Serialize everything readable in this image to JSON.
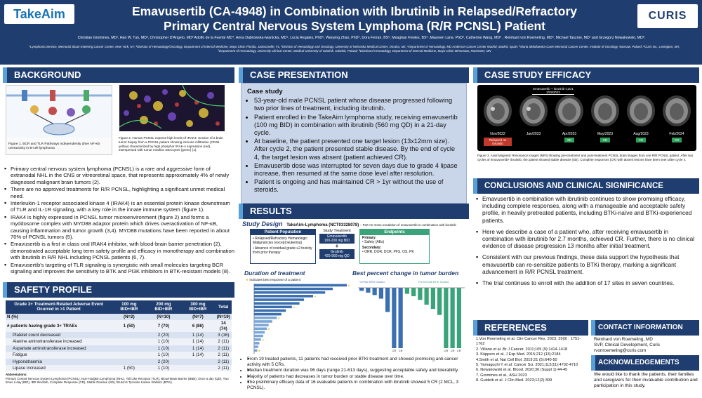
{
  "header": {
    "logo_left": "TakeAim",
    "logo_right": "CURIS",
    "title_line1": "Emavusertib (CA-4948) in Combination with Ibrutinib in Relapsed/Refractory",
    "title_line2": "Primary Central Nervous System Lymphoma (R/R PCNSL) Patient",
    "authors": "Christian Grommes, MD¹, Han W. Tun, MD², Christopher D'Angelo, MD³ Adolfo de la Fuente MD⁴, Anna Dabrowska-Iwanicka, MD⁵, Lucia Regales, PhD⁶, Wanying Zhao, PhD⁶, Dora Ferrari, BS⁶, Meaghan Fowles, BS⁶ ,Maureen Lane, PhD⁶, Catherine Wang, MD⁶ , Reinhard von Roemeling, MD⁶, Michael Taszner, MD⁷ and Grzegorz Nowakowski, MD⁸.",
    "affiliations": "¹Lymphoma Service, Memorial Sloan Kettering Cancer Center, New York, NY; ²Division of Hematology/Oncology, Department of Internal Medicine, Mayo Clinic-Florida, Jacksonville, FL; ³Division of Hematology and Oncology, University of Nebraska Medical Center, Omaha, NE; ⁴Department of Hematology, MD Anderson Cancer Center Madrid, Madrid, Spain; ⁵Maria Skłodowska-Curie Memorial Cancer Center, Institute of Oncology, Warsaw, Poland; ⁶Curis Inc., Lexington, MA; ⁷Department of Hematology, University Clinical Center, Medical University of Gdańsk, Gdańsk, Poland; ⁸Divisionof Hematology, Department of Internal Medicine, Mayo Clinic-Minnesota, Rochester, MN"
  },
  "background": {
    "heading": "BACKGROUND",
    "fig1_caption": "Figure 1. BCR and TLR Pathways independently drive NF-κB overactivity in B-cell lymphoma",
    "fig2_caption": "Figure 2. Human PCNSL express high levels of IRAK4: Section of a brain tumor biopsy from a PCNSL patient showing immune infiltration (CD45 yellow) characterized by high phosphor IRAK-4 expression (red), interspersed with tumor medline astrocytes (green) (1).",
    "bullets": [
      "Primary central nervous system lymphoma (PCNSL) is a rare and aggressive form of extranodal NHL in the CNS or vitreoretinal space, that represents approximately 4% of newly diagnosed malignant brain tumors (2).",
      "There are no approved treatments for R/R PCNSL, highlighting a significant unmet medical need.",
      "Interleukin-1 receptor associated kinase 4 (IRAK4) is an essential protein kinase downstream of TLR and IL-1R signaling, with a key role in the innate immune system (figure 1).",
      "IRAK4 is highly expressed in PCNSL tumor microenvironment (figure 2) and forms a myddosome complex with MYD88 adaptor protein which drives overactivation of NF-κB, causing inflammation and tumor growth (3,4). MYD88 mutations have been reported in about 70% of PCNSL tumors (5).",
      "Emavusertib is a first in class oral IRAK4 inhibitor, with blood-brain barrier penetration (2), demonstrated acceptable long term safety profile and efficacy in monotherapy and combination with ibrutinib in R/R NHL including PCNSL patients (6, 7).",
      "Emavusertib's targeting of TLR signaling is synergistic with small molecules targeting BCR signaling and improves the sensitivity to BTK and PI3K inhibitors in BTK-resistant models (8)."
    ]
  },
  "safety": {
    "heading": "SAFETY PROFILE",
    "col_headers": [
      "Grade 3+ Treatment-Related Adverse Event Ocurred in >1 Patient",
      "100 mg BID+IBR",
      "200 mg BID+IBR",
      "300 mg BID+IBR",
      "Total"
    ],
    "n_row": [
      "N (%)",
      "(N=2)",
      "(N=10)",
      "(N=7)",
      "(N=19)"
    ],
    "rows": [
      [
        "# patients having grade 3+ TRAEs",
        "1 (50)",
        "7 (70)",
        "6 (86)",
        "14 (74)"
      ],
      [
        "Platelet count decreased",
        "",
        "2 (20)",
        "1 (14)",
        "3 (16)"
      ],
      [
        "Alanine aminotransferase increased",
        "",
        "1 (10)",
        "1 (14)",
        "2 (11)"
      ],
      [
        "Aspartate aminotransferase increased",
        "",
        "1 (10)",
        "1 (14)",
        "2 (11)"
      ],
      [
        "Fatigue",
        "",
        "1 (10)",
        "1 (14)",
        "2 (11)"
      ],
      [
        "Hyponatraemia",
        "",
        "2 (20)",
        "",
        "2 (11)"
      ],
      [
        "Lipase increased",
        "1 (50)",
        "1 (10)",
        "",
        "2 (11)"
      ]
    ],
    "abbrev_title": "Abbreviations:",
    "abbreviations": "Primary Central Nervous System Lymphoma (PCNSL), Non-Hodgkin Lymphoma (NHL), Toll Like Receptor (TLR), Blood-Brain Barrier (BBB), Once a day (QD), Two times a day (BID), IBR Ibrutinib, Complete Response (CR), Stable Disease (SD), Bruton's Tyrosine Kinase Inhibitor (BTKi)."
  },
  "case": {
    "heading": "CASE PRESENTATION",
    "subheading": "Case study",
    "bullets": [
      "53-year-old male PCNSL patient whose disease progressed following two prior lines of treatment, including ibrutinib.",
      "Patient enrolled in the TakeAim lymphoma study, receiving emavusertib (100 mg BID) in combination with ibrutinib (560 mg QD) in a 21-day cycle.",
      "At baseline, the patient presented one target lesion (13x12mm size). After cycle 2, the patient presented stable disease. By the end of cycle 4, the target lesion was absent (patient achieved CR).",
      "Emavusertib dose was interrupted for seven days due to grade 4 lipase increase, then resumed at the same dose level after resolution.",
      "Patient is ongoing and has maintained CR > 1yr without the use of steroids."
    ]
  },
  "results": {
    "heading": "RESULTS",
    "study_design_title": "Study Design",
    "study_design_sub": "TakeAim-Lymphoma (NCT03328078)",
    "study_design_note": "– Part A2: Dose escalation of emavusertib in combination with ibrutinib",
    "population_title": "Patient Population",
    "population_items": [
      "Relapsed/Refractory Hematologic Malignancies (except leukemia)",
      "Absence of residual grade ≥2 toxicity from prior therapy"
    ],
    "treatment_title": "Study Treatment",
    "treatment1": "Emavusertib",
    "treatment1_dose": "100-200 mg BID",
    "treatment2": "Ibrutinib",
    "treatment2_dose": "420-560 mg QD",
    "endpoints_title": "Endpoints",
    "primary_label": "Primary:",
    "primary_value": "Safety (AEs)",
    "secondary_label": "Secondary:",
    "secondary_value": "ORR, DOR, DCR, PFS, OS, PK",
    "duration_title": "Duration of treatment",
    "duration_legend": "Indicates best response of a patient",
    "waterfall_title": "Best percent change in tumor burden",
    "waterfall_group1": "% Prior BTKi Treated",
    "waterfall_group2": "Pre-MYD88 BTKi Treated",
    "bullets": [
      "From 19 treated patients, 11 patients had received prior BTKi treatment and showed promising anti-cancer activity with 5 CRs.",
      "Median treatment duration was 96 days (range 21-613 days), suggesting acceptable safety and tolerability.",
      "Majority of patients had decreases in tumor burden or stable disease over time.",
      "The preliminary efficacy data of 16 evaluable patients in combination with ibrutinib showed 5 CR (2 MCL, 3 PCNSL)."
    ]
  },
  "chart_data": [
    {
      "type": "bar",
      "title": "Duration of treatment",
      "orientation": "horizontal",
      "values": [
        613,
        520,
        470,
        390,
        330,
        300,
        250,
        210,
        180,
        150,
        120,
        96,
        85,
        70,
        60,
        45,
        35,
        28,
        21
      ],
      "xlabel": "",
      "ylabel": ""
    },
    {
      "type": "bar",
      "title": "Best percent change in tumor burden",
      "categories": [
        "1",
        "2",
        "3",
        "4",
        "5",
        "6",
        "7",
        "8",
        "9",
        "10",
        "11",
        "12",
        "13",
        "14",
        "15",
        "16"
      ],
      "values": [
        -5,
        -8,
        -12,
        -18,
        -40,
        -100,
        -100,
        -10,
        -14,
        -20,
        -28,
        -35,
        -45,
        -100,
        -100,
        -100
      ],
      "labels": [
        "",
        "",
        "",
        "",
        "",
        "CR",
        "CR",
        "",
        "",
        "",
        "",
        "",
        "",
        "CR",
        "CR",
        "CR"
      ],
      "ylim": [
        -100,
        0
      ]
    }
  ],
  "efficacy": {
    "heading": "CASE STUDY EFFICACY",
    "cycle_label": "Emavusertib + Ibrutinib C1D1 3/29/2023",
    "scan_dates": [
      "Nov/2022",
      "Jan/2023",
      "Apr/2023",
      "May/2023",
      "Aug/2023",
      "Feb/2024"
    ],
    "scan_status": [
      "Relapsed on ibrutinib",
      "",
      "SD",
      "CR",
      "CR",
      "CR"
    ],
    "fig3_caption": "Figure 3. Axial Magnetic Resonance images (MRI) showing pre-treatment and post-treatment PCNSL brain images from one R/R PCNSL patient. After two cycles of emavusertib+ ibrutinib, the patient showed stable disease (SD). Complete responses (CR) with absent lesions have been seen after cycle 4."
  },
  "conclusions": {
    "heading": "CONCLUSIONS AND CLINICAL SIGNIFICANCE",
    "bullets": [
      "Emavusertib in combination with ibrutinib continues to show promising efficacy, including complete responses, along with a manageable and acceptable safety profile, in heavily pretreated patients, including BTKi-naïve and BTKi-experienced patients.",
      "Here we describe a case of a patient who, after receiving emavusertib in combination with ibrutinib for 2.7 months, achieved CR. Further, there is no clinical evidence of disease progression 13 months after initial treatment.",
      "Consistent with our previous findings, these data support the hypothesis that emavusertib can re-sensitize patients to BTKi therapy, marking a significant advancement in R/R PCNSL treatment.",
      "The trial continues to enroll with the addition of 17 sites in seven countries."
    ]
  },
  "references": {
    "heading": "REFERENCES",
    "items": [
      "1.Von Roemeling et al. Clin Cancer Res. 2023; 29(9) : 1751-1762",
      "2. Villano et al .Br J Cancer. 2011;105 (9):1414-1418",
      "3. Küppers et al. J Exp Med. 2015;212 (13):2184",
      "4.Smith et al. Nat Cell Biol. 2019;21 (5):640-50",
      "5. Yamaguchi Y et al. Cancer Sci. 2021;112(11):4702-4710",
      "6. Nowakowski et al. Blood. 2020;36 (Suppl 1):44-45",
      "7. Grommes et al., ASH 2023",
      "8. Guidetti et al. J Clin Med. 2023;12(2):399"
    ]
  },
  "contact": {
    "heading": "CONTACT INFORMATION",
    "name": "Reinhard von Roemeling, MD",
    "role": "SVP, Clinical Development, Curis",
    "email": "rvonroemeling@curis.com"
  },
  "ack": {
    "heading": "ACKNOWLEDGEMENTS",
    "text": "We would like to thank the patients, their families and caregivers for their invaluable contribution and participation in this study."
  }
}
